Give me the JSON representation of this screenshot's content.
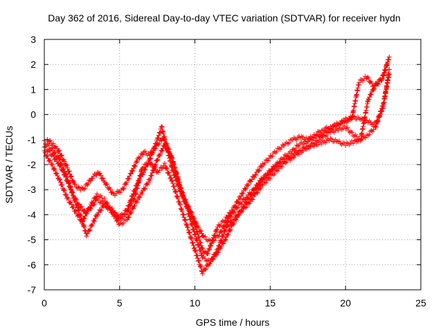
{
  "chart_data": {
    "type": "scatter",
    "title": "Day 362 of 2016, Sidereal Day-to-day VTEC variation (SDTVAR) for receiver hydn",
    "xlabel": "GPS time / hours",
    "ylabel": "SDTVAR / TECUs",
    "xlim": [
      0,
      25
    ],
    "ylim": [
      -7,
      3
    ],
    "xticks": [
      "0",
      "5",
      "10",
      "15",
      "20",
      "25"
    ],
    "yticks": [
      "-7",
      "-6",
      "-5",
      "-4",
      "-3",
      "-2",
      "-1",
      "0",
      "1",
      "2",
      "3"
    ],
    "grid": true,
    "marker": "plus",
    "color": "#ff0000",
    "series": [
      {
        "x": [
          0.0,
          0.5,
          1.0,
          1.5,
          2.0,
          2.3,
          2.7,
          3.0,
          3.5,
          4.0,
          4.5,
          5.0,
          5.5,
          6.0,
          6.3,
          6.5,
          7.0,
          7.5,
          7.8,
          8.0,
          8.5,
          9.0,
          9.5,
          10.0,
          10.3,
          10.5,
          10.8,
          11.0,
          11.5,
          12.0,
          12.5,
          13.0,
          13.5,
          14.0,
          14.5,
          15.0,
          15.5,
          16.0,
          16.5,
          17.0,
          17.5,
          18.0,
          18.5,
          19.0,
          19.5,
          20.0,
          20.5,
          21.0,
          21.5,
          22.0,
          22.5,
          22.9
        ],
        "y": [
          -1.3,
          -1.6,
          -2.0,
          -2.6,
          -3.3,
          -3.6,
          -3.9,
          -3.8,
          -3.4,
          -3.6,
          -3.9,
          -4.1,
          -3.8,
          -3.0,
          -2.6,
          -2.4,
          -1.8,
          -1.0,
          -0.5,
          -1.0,
          -2.2,
          -3.0,
          -3.6,
          -4.4,
          -5.0,
          -5.4,
          -5.6,
          -5.3,
          -4.5,
          -4.2,
          -3.8,
          -3.3,
          -2.8,
          -2.4,
          -2.0,
          -1.7,
          -1.4,
          -1.2,
          -1.0,
          -0.9,
          -1.0,
          -0.8,
          -0.6,
          -0.5,
          -0.4,
          -0.2,
          -0.1,
          -0.2,
          -0.3,
          -0.4,
          0.3,
          1.8
        ]
      },
      {
        "x": [
          0.0,
          0.5,
          1.0,
          1.5,
          2.0,
          2.5,
          3.0,
          3.5,
          4.0,
          4.5,
          5.0,
          5.5,
          6.0,
          6.5,
          7.0,
          7.5,
          8.0,
          8.5,
          9.0,
          9.5,
          10.0,
          10.5,
          11.0,
          11.5,
          12.0,
          12.5,
          13.0,
          13.5,
          14.0,
          14.5,
          15.0,
          15.5,
          16.0,
          16.5,
          17.0,
          17.5,
          18.0,
          18.5,
          19.0,
          19.5,
          20.0,
          20.5,
          21.0,
          21.5,
          22.0,
          22.5,
          22.9
        ],
        "y": [
          -1.5,
          -2.0,
          -2.6,
          -3.3,
          -3.8,
          -4.3,
          -3.7,
          -3.2,
          -3.4,
          -3.9,
          -4.4,
          -4.2,
          -3.6,
          -3.1,
          -2.6,
          -1.8,
          -1.2,
          -1.8,
          -2.9,
          -3.8,
          -4.8,
          -5.7,
          -5.9,
          -5.4,
          -4.6,
          -4.2,
          -3.9,
          -3.4,
          -3.0,
          -2.6,
          -2.3,
          -2.0,
          -1.8,
          -1.6,
          -1.4,
          -1.3,
          -1.2,
          -1.1,
          -1.0,
          -1.1,
          -1.2,
          -1.1,
          -1.0,
          -0.8,
          -0.5,
          0.4,
          1.6
        ]
      },
      {
        "x": [
          0.0,
          0.5,
          1.0,
          1.5,
          2.0,
          2.5,
          2.8,
          3.0,
          3.5,
          4.0,
          4.5,
          5.0,
          5.5,
          5.8,
          6.0,
          6.3,
          6.5,
          7.0,
          7.5,
          8.0,
          8.5,
          9.0,
          9.5,
          10.0,
          10.5,
          11.0,
          11.5,
          12.0,
          12.5,
          13.0,
          13.5,
          14.0,
          14.5,
          15.0,
          15.5,
          16.0,
          16.5,
          17.0,
          17.5,
          18.0,
          18.5,
          19.0,
          19.5,
          20.0,
          20.5,
          21.0,
          21.5,
          22.0,
          22.5,
          22.9
        ],
        "y": [
          -1.1,
          -1.4,
          -1.8,
          -2.5,
          -3.4,
          -4.2,
          -4.8,
          -4.6,
          -4.0,
          -3.6,
          -3.8,
          -4.2,
          -3.9,
          -3.5,
          -3.3,
          -2.6,
          -2.1,
          -1.9,
          -2.3,
          -2.0,
          -2.7,
          -3.6,
          -4.5,
          -5.4,
          -6.3,
          -5.9,
          -5.5,
          -5.0,
          -4.4,
          -3.9,
          -3.6,
          -3.2,
          -2.8,
          -2.5,
          -2.2,
          -1.9,
          -1.7,
          -1.5,
          -1.3,
          -1.1,
          -0.9,
          -0.7,
          -0.6,
          -0.5,
          -0.8,
          -1.0,
          0.6,
          1.2,
          1.5,
          2.3
        ]
      },
      {
        "x": [
          0.2,
          0.6,
          1.0,
          1.5,
          2.0,
          2.4,
          2.7,
          3.2,
          3.6,
          4.0,
          4.6,
          5.2,
          5.8,
          6.2,
          6.6,
          7.0,
          7.4,
          7.9,
          8.4,
          8.9,
          9.3,
          9.8,
          10.2,
          10.6,
          11.1,
          11.6,
          12.2,
          12.8,
          13.4,
          13.9,
          14.4,
          14.9,
          15.4,
          15.9,
          16.4,
          16.9,
          17.4,
          17.9,
          18.4,
          18.9,
          19.4,
          19.9,
          20.4,
          20.9,
          21.4,
          21.9,
          22.4,
          22.8
        ],
        "y": [
          -1.0,
          -1.2,
          -1.5,
          -2.1,
          -2.8,
          -3.0,
          -2.9,
          -2.5,
          -2.3,
          -2.7,
          -3.2,
          -3.0,
          -2.3,
          -1.8,
          -1.5,
          -1.6,
          -1.3,
          -0.9,
          -1.6,
          -2.6,
          -3.4,
          -4.0,
          -4.5,
          -4.9,
          -5.1,
          -4.8,
          -4.2,
          -3.7,
          -3.3,
          -3.0,
          -2.6,
          -2.3,
          -2.0,
          -1.7,
          -1.5,
          -1.2,
          -1.1,
          -0.9,
          -0.8,
          -0.6,
          -0.4,
          -0.3,
          -0.2,
          1.3,
          1.5,
          1.1,
          1.4,
          2.1
        ]
      }
    ]
  }
}
